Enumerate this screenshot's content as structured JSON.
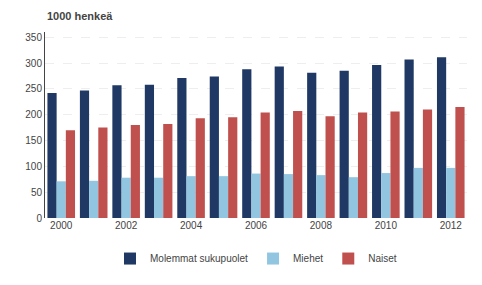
{
  "chart_data": {
    "type": "bar",
    "ylabel": "1000 henkeä",
    "categories": [
      "2000",
      null,
      "2002",
      null,
      "2004",
      null,
      "2006",
      null,
      "2008",
      null,
      "2010",
      null,
      "2012"
    ],
    "series": [
      {
        "name": "Molemmat sukupuolet",
        "color": "#1F3864",
        "values": [
          242,
          247,
          257,
          258,
          271,
          274,
          288,
          293,
          281,
          285,
          296,
          307,
          311
        ]
      },
      {
        "name": "Miehet",
        "color": "#92C5E0",
        "values": [
          71,
          72,
          78,
          78,
          81,
          81,
          86,
          85,
          83,
          79,
          87,
          97,
          97
        ]
      },
      {
        "name": "Naiset",
        "color": "#C0504D",
        "values": [
          170,
          175,
          180,
          182,
          193,
          195,
          204,
          207,
          197,
          204,
          206,
          210,
          215
        ]
      }
    ],
    "ylim": [
      0,
      360
    ],
    "yticks": [
      0,
      50,
      100,
      150,
      200,
      250,
      300,
      350
    ],
    "grid": true,
    "legend": "bottom"
  }
}
